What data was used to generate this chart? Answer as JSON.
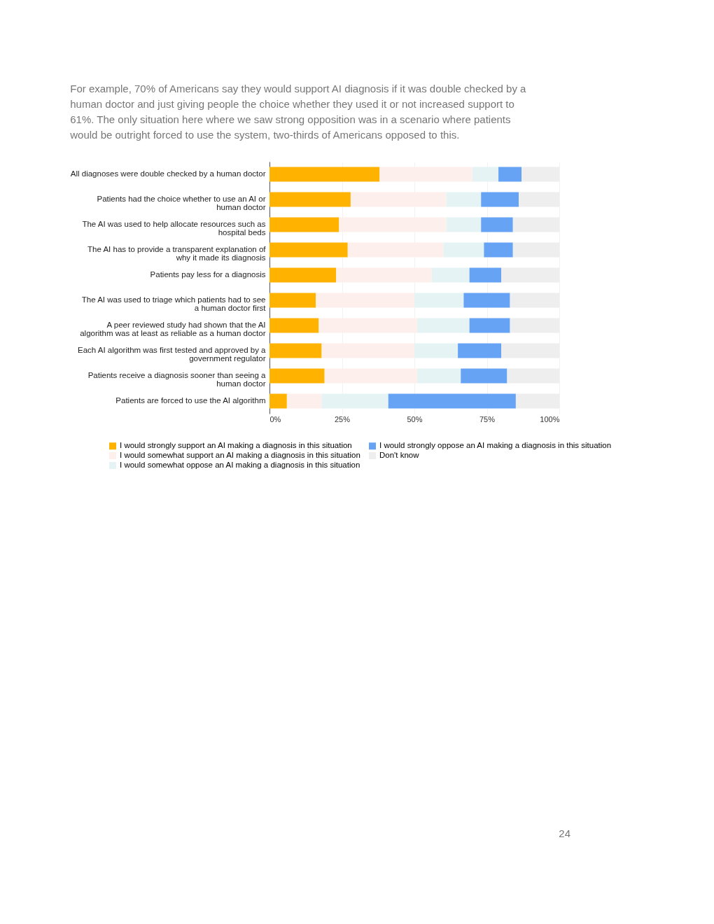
{
  "chart_data": {
    "type": "bar",
    "orientation": "horizontal",
    "stacked": true,
    "subtitle": "For example, 70% of Americans say they would support AI diagnosis if it was double checked by a human doctor and just giving people the choice whether they used it or not increased support to 61%.  The only situation here where we saw strong opposition was in a scenario where patients would be outright forced to use the system,  two-thirds of Americans opposed to this.",
    "categories": [
      "All diagnoses were double checked by a human doctor",
      "Patients had the choice whether to use an AI or human doctor",
      "The AI was used to help allocate resources such as hospital beds",
      "The AI has to provide a transparent explanation of why it made its diagnosis",
      "Patients pay less for a diagnosis",
      "The AI was used to triage which patients had to see a human doctor first",
      "A peer reviewed study had shown that the AI algorithm was at least as reliable as a human doctor",
      "Each AI algorithm was first tested and approved by a government regulator",
      "Patients receive a diagnosis sooner than seeing a human doctor",
      "Patients are forced to use the AI algorithm"
    ],
    "series": [
      {
        "name": "I would strongly support an AI making a diagnosis in this situation",
        "color": "#ffb300",
        "values": [
          38,
          28,
          24,
          27,
          23,
          16,
          17,
          18,
          19,
          6
        ]
      },
      {
        "name": "I would somewhat support an AI making a diagnosis in this situation",
        "color": "#fdf0ec",
        "values": [
          32,
          33,
          37,
          33,
          33,
          34,
          34,
          32,
          32,
          12
        ]
      },
      {
        "name": "I would somewhat oppose an AI making a diagnosis in this situation",
        "color": "#e6f3f4",
        "values": [
          9,
          12,
          12,
          14,
          13,
          17,
          18,
          15,
          15,
          23
        ]
      },
      {
        "name": "I would strongly oppose an AI making a diagnosis in this situation",
        "color": "#66a3f5",
        "values": [
          8,
          13,
          11,
          10,
          11,
          16,
          14,
          15,
          16,
          44
        ]
      },
      {
        "name": "Don't know",
        "color": "#eeeeee",
        "values": [
          13,
          14,
          16,
          16,
          20,
          17,
          17,
          20,
          18,
          15
        ]
      }
    ],
    "xlim": [
      0,
      100
    ],
    "xticks": [
      {
        "value": 0,
        "label": "0%"
      },
      {
        "value": 25,
        "label": "25%"
      },
      {
        "value": 50,
        "label": "50%"
      },
      {
        "value": 75,
        "label": "75%"
      },
      {
        "value": 100,
        "label": "100%"
      }
    ],
    "grid": "x",
    "legend": "bottom",
    "annotations": [
      "24"
    ]
  }
}
